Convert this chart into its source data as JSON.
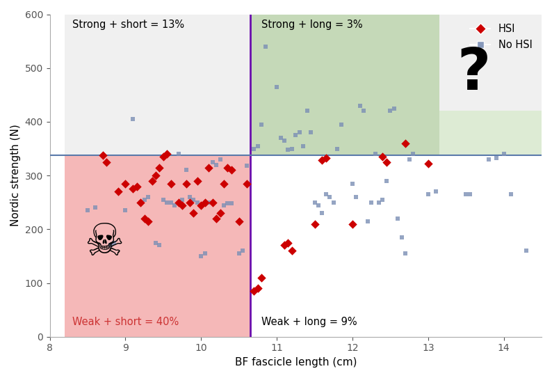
{
  "title": "",
  "xlabel": "BF fascicle length (cm)",
  "ylabel": "Nordic strength (N)",
  "xlim": [
    8.2,
    14.5
  ],
  "ylim": [
    0,
    600
  ],
  "x_threshold": 10.65,
  "y_threshold": 338,
  "gray_top_threshold": 420,
  "bg_color": "#f0f0f0",
  "white_color": "#ffffff",
  "green_dark_color": "#c5d9b8",
  "green_light_color": "#ddebd4",
  "red_region_color": "#f5b8b8",
  "vline_color": "#6a0dad",
  "hline_color": "#5a7aaa",
  "label_strong_short": "Strong + short = 13%",
  "label_strong_long": "Strong + long = 3%",
  "label_weak_short": "Weak + short = 40%",
  "label_weak_long": "Weak + long = 9%",
  "hsi_color": "#cc0000",
  "nohsi_color": "#7b8fb5",
  "green_step_x": 13.15,
  "green_step_y": 420,
  "hsi_points": [
    [
      8.7,
      338
    ],
    [
      8.75,
      325
    ],
    [
      8.9,
      270
    ],
    [
      9.0,
      285
    ],
    [
      9.1,
      275
    ],
    [
      9.15,
      280
    ],
    [
      9.2,
      250
    ],
    [
      9.25,
      220
    ],
    [
      9.3,
      215
    ],
    [
      9.35,
      290
    ],
    [
      9.4,
      300
    ],
    [
      9.45,
      315
    ],
    [
      9.5,
      335
    ],
    [
      9.55,
      340
    ],
    [
      9.6,
      285
    ],
    [
      9.7,
      250
    ],
    [
      9.75,
      245
    ],
    [
      9.8,
      285
    ],
    [
      9.85,
      250
    ],
    [
      9.9,
      230
    ],
    [
      9.95,
      290
    ],
    [
      10.0,
      245
    ],
    [
      10.05,
      250
    ],
    [
      10.1,
      315
    ],
    [
      10.15,
      250
    ],
    [
      10.2,
      220
    ],
    [
      10.25,
      230
    ],
    [
      10.3,
      285
    ],
    [
      10.35,
      315
    ],
    [
      10.4,
      310
    ],
    [
      10.5,
      215
    ],
    [
      10.6,
      285
    ],
    [
      10.7,
      85
    ],
    [
      10.75,
      90
    ],
    [
      10.8,
      110
    ],
    [
      11.1,
      170
    ],
    [
      11.15,
      175
    ],
    [
      11.2,
      160
    ],
    [
      11.5,
      210
    ],
    [
      11.6,
      328
    ],
    [
      11.65,
      332
    ],
    [
      12.0,
      210
    ],
    [
      12.4,
      335
    ],
    [
      12.45,
      325
    ],
    [
      12.7,
      360
    ],
    [
      13.0,
      322
    ]
  ],
  "nohsi_points": [
    [
      8.5,
      235
    ],
    [
      8.6,
      240
    ],
    [
      8.8,
      170
    ],
    [
      8.85,
      175
    ],
    [
      9.0,
      235
    ],
    [
      9.1,
      405
    ],
    [
      9.2,
      250
    ],
    [
      9.25,
      255
    ],
    [
      9.3,
      260
    ],
    [
      9.4,
      175
    ],
    [
      9.45,
      170
    ],
    [
      9.5,
      255
    ],
    [
      9.55,
      250
    ],
    [
      9.6,
      250
    ],
    [
      9.65,
      245
    ],
    [
      9.7,
      340
    ],
    [
      9.75,
      255
    ],
    [
      9.8,
      310
    ],
    [
      9.85,
      260
    ],
    [
      9.9,
      255
    ],
    [
      9.95,
      250
    ],
    [
      10.0,
      150
    ],
    [
      10.05,
      155
    ],
    [
      10.1,
      250
    ],
    [
      10.15,
      325
    ],
    [
      10.2,
      320
    ],
    [
      10.25,
      330
    ],
    [
      10.3,
      245
    ],
    [
      10.35,
      248
    ],
    [
      10.4,
      248
    ],
    [
      10.5,
      155
    ],
    [
      10.55,
      160
    ],
    [
      10.6,
      318
    ],
    [
      10.7,
      350
    ],
    [
      10.75,
      355
    ],
    [
      10.8,
      395
    ],
    [
      10.85,
      540
    ],
    [
      11.0,
      465
    ],
    [
      11.05,
      370
    ],
    [
      11.1,
      365
    ],
    [
      11.15,
      348
    ],
    [
      11.2,
      350
    ],
    [
      11.25,
      375
    ],
    [
      11.3,
      380
    ],
    [
      11.35,
      355
    ],
    [
      11.4,
      420
    ],
    [
      11.45,
      380
    ],
    [
      11.5,
      250
    ],
    [
      11.55,
      245
    ],
    [
      11.6,
      230
    ],
    [
      11.65,
      265
    ],
    [
      11.7,
      260
    ],
    [
      11.75,
      250
    ],
    [
      11.8,
      350
    ],
    [
      11.85,
      395
    ],
    [
      12.0,
      285
    ],
    [
      12.05,
      260
    ],
    [
      12.1,
      430
    ],
    [
      12.15,
      420
    ],
    [
      12.2,
      215
    ],
    [
      12.25,
      250
    ],
    [
      12.3,
      340
    ],
    [
      12.35,
      250
    ],
    [
      12.4,
      255
    ],
    [
      12.45,
      290
    ],
    [
      12.5,
      420
    ],
    [
      12.55,
      425
    ],
    [
      12.6,
      220
    ],
    [
      12.65,
      185
    ],
    [
      12.7,
      155
    ],
    [
      12.75,
      330
    ],
    [
      12.8,
      340
    ],
    [
      13.0,
      265
    ],
    [
      13.1,
      270
    ],
    [
      13.5,
      265
    ],
    [
      13.55,
      265
    ],
    [
      13.8,
      330
    ],
    [
      13.9,
      332
    ],
    [
      14.0,
      340
    ],
    [
      14.1,
      265
    ],
    [
      14.3,
      160
    ]
  ]
}
